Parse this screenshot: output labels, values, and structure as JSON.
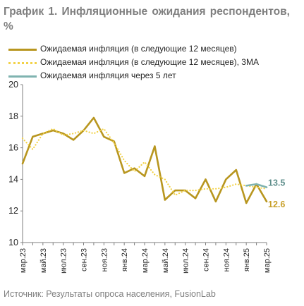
{
  "title": "График 1. Инфляционные ожидания респондентов, %",
  "source": "Источник: Результаты опроса населения, FusionLab",
  "colors": {
    "main": "#b8961f",
    "ma": "#f2d248",
    "longterm": "#7fb3b0",
    "axis": "#7f7f7f"
  },
  "chart_data": {
    "type": "line",
    "title": "График 1. Инфляционные ожидания респондентов, %",
    "xlabel": "",
    "ylabel": "",
    "ylim": [
      10,
      20
    ],
    "yticks": [
      "10",
      "12",
      "14",
      "16",
      "18",
      "20"
    ],
    "x": [
      "мар.23",
      "апр.23",
      "май.23",
      "июн.23",
      "июл.23",
      "авг.23",
      "сен.23",
      "окт.23",
      "ноя.23",
      "дек.23",
      "янв.24",
      "фев.24",
      "мар.24",
      "апр.24",
      "май.24",
      "июн.24",
      "июл.24",
      "авг.24",
      "сен.24",
      "окт.24",
      "ноя.24",
      "дек.24",
      "янв.25",
      "фев.25",
      "мар.25"
    ],
    "xtick_labels": [
      "мар.23",
      "май.23",
      "июл.23",
      "сен.23",
      "ноя.23",
      "янв.24",
      "мар.24",
      "май.24",
      "июл.24",
      "сен.24",
      "ноя.24",
      "янв.25",
      "мар.25"
    ],
    "grid": false,
    "legend_position": "top",
    "series": [
      {
        "name": "Ожидаемая инфляция (в следующие 12 месяцев)",
        "style": "solid",
        "color": "#b8961f",
        "x": [
          "мар.23",
          "апр.23",
          "май.23",
          "июн.23",
          "июл.23",
          "авг.23",
          "сен.23",
          "окт.23",
          "ноя.23",
          "дек.23",
          "янв.24",
          "фев.24",
          "мар.24",
          "апр.24",
          "май.24",
          "июн.24",
          "июл.24",
          "авг.24",
          "сен.24",
          "окт.24",
          "ноя.24",
          "дек.24",
          "янв.25",
          "фев.25",
          "мар.25"
        ],
        "values": [
          15.0,
          16.7,
          16.9,
          17.1,
          16.9,
          16.5,
          17.1,
          17.9,
          16.7,
          16.4,
          14.4,
          14.7,
          14.2,
          16.1,
          12.7,
          13.3,
          13.3,
          12.8,
          14.0,
          12.6,
          14.0,
          14.6,
          12.5,
          13.7,
          12.6
        ],
        "end_label": "12.6"
      },
      {
        "name": "Ожидаемая инфляция (в следующие 12 месяцев), 3MA",
        "style": "dotted",
        "color": "#f2d248",
        "x": [
          "мар.23",
          "апр.23",
          "май.23",
          "июн.23",
          "июл.23",
          "авг.23",
          "сен.23",
          "окт.23",
          "ноя.23",
          "дек.23",
          "янв.24",
          "фев.24",
          "мар.24",
          "апр.24",
          "май.24",
          "июн.24",
          "июл.24",
          "авг.24",
          "сен.24",
          "окт.24",
          "ноя.24",
          "дек.24",
          "янв.25",
          "фев.25",
          "мар.25"
        ],
        "values": [
          16.6,
          15.9,
          16.9,
          17.2,
          16.8,
          16.9,
          17.1,
          16.9,
          17.2,
          16.3,
          15.2,
          14.5,
          15.1,
          14.3,
          14.0,
          13.0,
          13.3,
          13.3,
          13.4,
          13.4,
          13.5,
          13.7,
          13.6,
          13.5,
          13.4
        ]
      },
      {
        "name": "Ожидаемая инфляция через 5 лет",
        "style": "solid",
        "color": "#7fb3b0",
        "x": [
          "янв.25",
          "фев.25",
          "мар.25"
        ],
        "values": [
          13.6,
          13.7,
          13.5
        ],
        "end_label": "13.5"
      }
    ]
  }
}
